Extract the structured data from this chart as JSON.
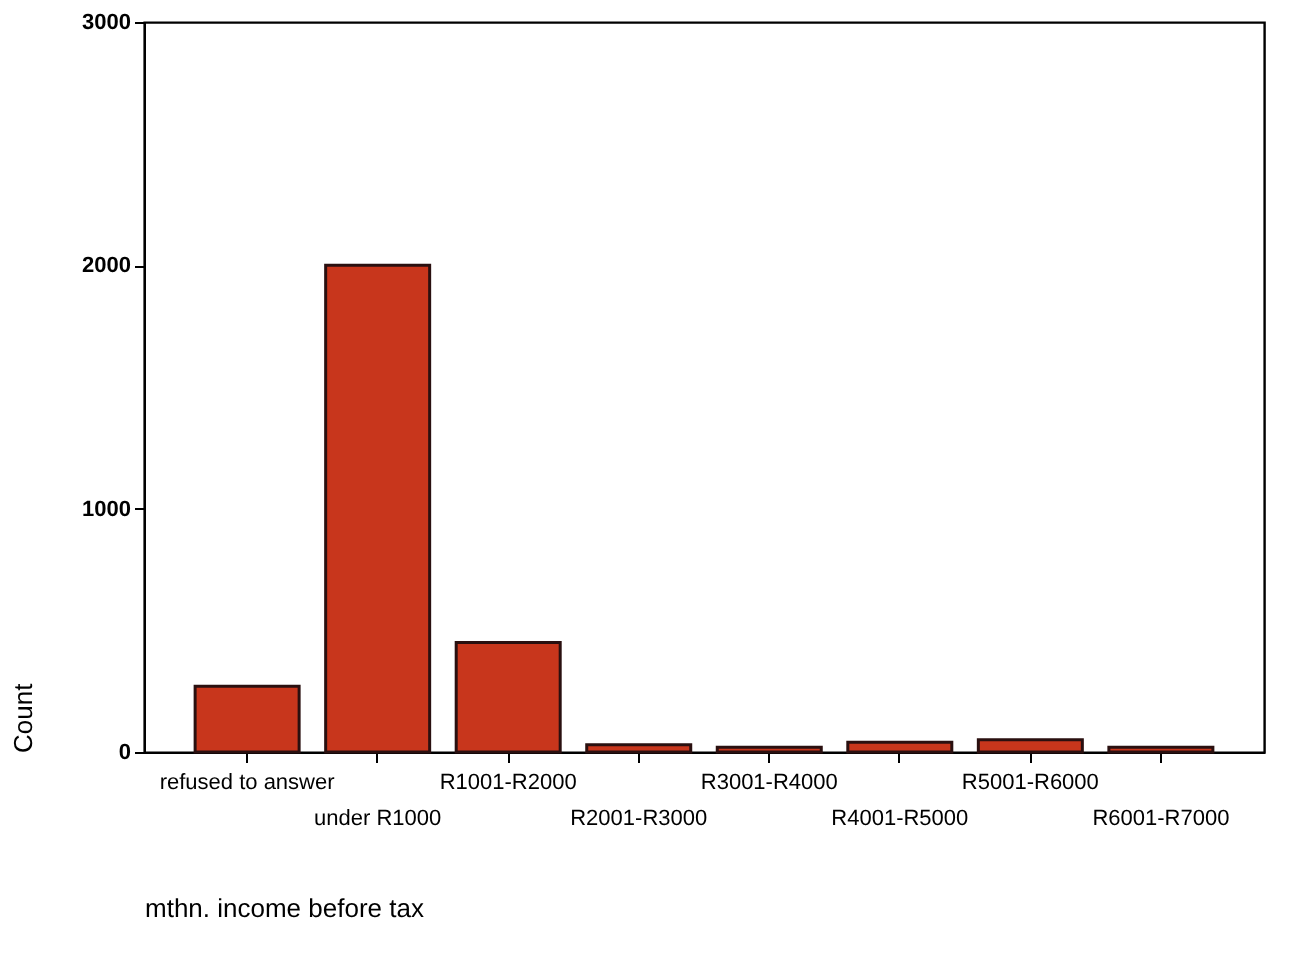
{
  "chart_data": {
    "type": "bar",
    "xlabel": "mthn. income before tax",
    "ylabel": "Count",
    "categories": [
      "refused to answer",
      "under R1000",
      "R1001-R2000",
      "R2001-R3000",
      "R3001-R4000",
      "R4001-R5000",
      "R5001-R6000",
      "R6001-R7000"
    ],
    "values": [
      270,
      2000,
      450,
      30,
      20,
      40,
      50,
      20
    ],
    "color": "#c8361c",
    "ylim": [
      0,
      3000
    ],
    "yticks": [
      0,
      1000,
      2000,
      3000
    ],
    "grid": false
  }
}
